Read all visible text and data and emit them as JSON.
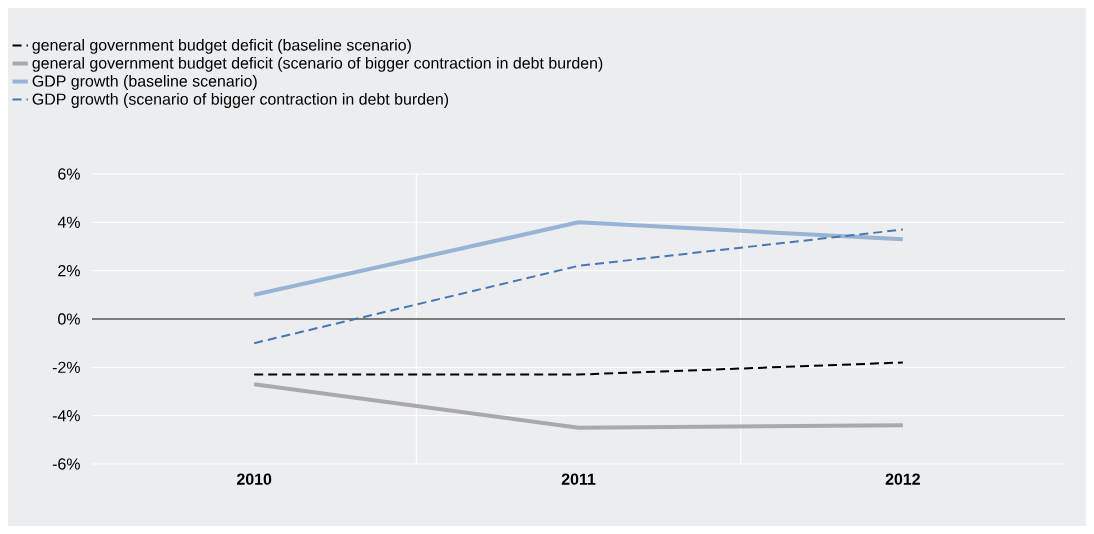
{
  "chart_data": {
    "type": "line",
    "categories": [
      "2010",
      "2011",
      "2012"
    ],
    "series": [
      {
        "name": "general government budget deficit (baseline scenario)",
        "color": "#000000",
        "line_style": "dashed",
        "values": [
          -2.3,
          -2.3,
          -1.8
        ]
      },
      {
        "name": "general government budget deficit (scenario of bigger contraction in debt burden)",
        "color": "#a9a9ab",
        "line_style": "solid",
        "values": [
          -2.7,
          -4.5,
          -4.4
        ]
      },
      {
        "name": "GDP growth (baseline scenario)",
        "color": "#98b3d4",
        "line_style": "solid",
        "values": [
          1.0,
          4.0,
          3.3
        ]
      },
      {
        "name": "GDP growth (scenario of bigger contraction in debt burden)",
        "color": "#4a76b0",
        "line_style": "dashed",
        "values": [
          -1.0,
          2.2,
          3.7
        ]
      }
    ],
    "ylim": [
      -6,
      6
    ],
    "yticks": [
      {
        "value": -6,
        "label": "-6%"
      },
      {
        "value": -4,
        "label": "-4%"
      },
      {
        "value": -2,
        "label": "-2%"
      },
      {
        "value": 0,
        "label": "0%"
      },
      {
        "value": 2,
        "label": "2%"
      },
      {
        "value": 4,
        "label": "4%"
      },
      {
        "value": 6,
        "label": "6%"
      }
    ],
    "ref_lines": [
      {
        "axis": "y",
        "value": 0,
        "color": "#000000"
      }
    ],
    "grid": true,
    "legend": "top",
    "marker": "none"
  }
}
